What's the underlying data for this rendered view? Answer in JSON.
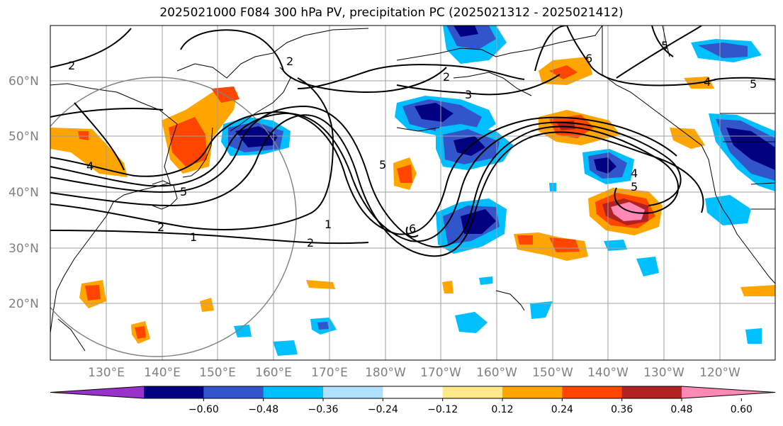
{
  "title": "2025021000 F084 300 hPa PV, precipitation PC (2025021312 - 2025021412)",
  "map": {
    "lat_labels": [
      "60°N",
      "50°N",
      "40°N",
      "30°N",
      "20°N"
    ],
    "lon_labels": [
      "130°E",
      "140°E",
      "150°E",
      "160°E",
      "170°E",
      "180°W",
      "170°W",
      "160°W",
      "150°W",
      "140°W",
      "130°W",
      "120°W"
    ],
    "pv_contour_labels": [
      "2",
      "2",
      "2",
      "3",
      "6",
      "5",
      "5",
      "4",
      "5",
      "5",
      "4",
      "2",
      "1",
      "1",
      "2",
      "6",
      "4",
      "5"
    ]
  },
  "colorbar": {
    "ticks": [
      "−0.60",
      "−0.48",
      "−0.36",
      "−0.24",
      "−0.12",
      "0.12",
      "0.24",
      "0.36",
      "0.48",
      "0.60"
    ],
    "colors": [
      "#9932cc",
      "#000080",
      "#3355cc",
      "#00bfff",
      "#b0e0ff",
      "#ffffff",
      "#ffe88a",
      "#ffa500",
      "#ff4500",
      "#b22222",
      "#ff88b4"
    ]
  }
}
